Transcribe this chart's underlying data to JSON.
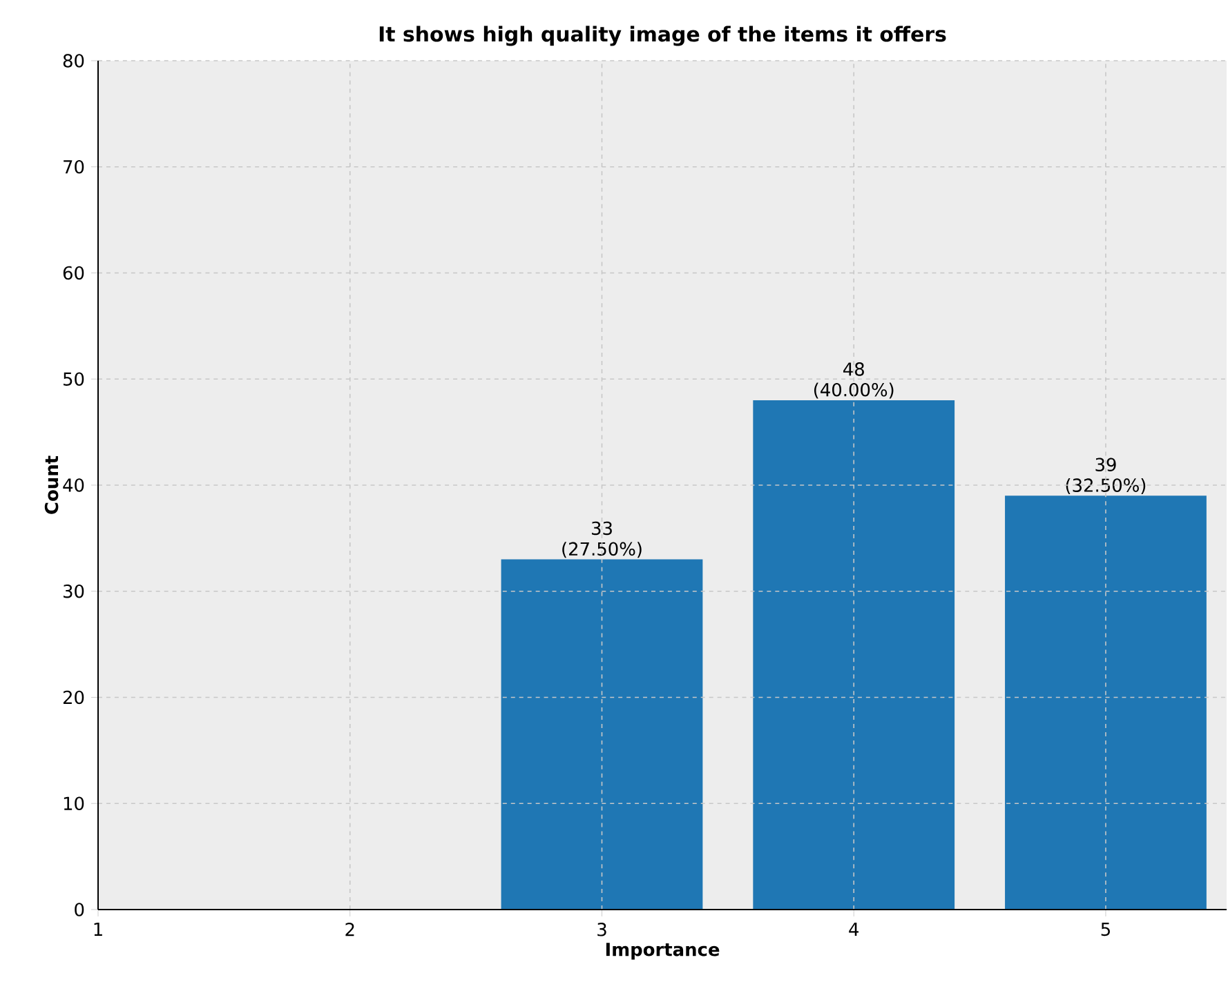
{
  "chart_data": {
    "type": "bar",
    "title": "It shows high quality image of the items it offers",
    "xlabel": "Importance",
    "ylabel": "Count",
    "x": [
      3,
      4,
      5
    ],
    "values": [
      33,
      48,
      39
    ],
    "color": "#1f77b4",
    "value_labels": [
      "33 (27.50%)",
      "48 (40.00%)",
      "39 (32.50%)"
    ],
    "xlim": [
      1,
      5.48
    ],
    "xticks": [
      1,
      2,
      3,
      4,
      5
    ],
    "ylim": [
      0,
      80
    ],
    "yticks": [
      0,
      10,
      20,
      30,
      40,
      50,
      60,
      70,
      80
    ],
    "grid": true
  }
}
